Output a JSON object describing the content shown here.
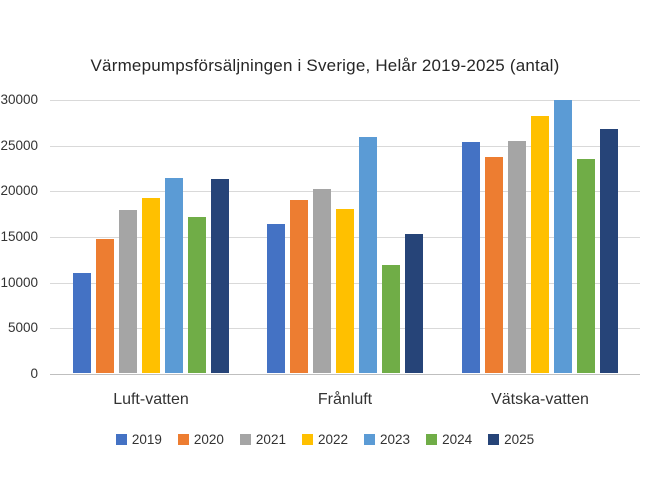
{
  "chart_data": {
    "type": "bar",
    "title": "Värmepumpsförsäljningen i Sverige, Helår 2019-2025 (antal)",
    "xlabel": "",
    "ylabel": "",
    "categories": [
      "Luft-vatten",
      "Frånluft",
      "Vätska-vatten"
    ],
    "series": [
      {
        "name": "2019",
        "color": "#4472C4",
        "values": [
          11000,
          16300,
          25300
        ]
      },
      {
        "name": "2020",
        "color": "#ED7D31",
        "values": [
          14700,
          18900,
          23700
        ]
      },
      {
        "name": "2021",
        "color": "#A5A5A5",
        "values": [
          17800,
          20100,
          25400
        ]
      },
      {
        "name": "2022",
        "color": "#FFC000",
        "values": [
          19200,
          18000,
          28100
        ]
      },
      {
        "name": "2023",
        "color": "#5B9BD5",
        "values": [
          21300,
          25800,
          29900
        ]
      },
      {
        "name": "2024",
        "color": "#70AD47",
        "values": [
          17100,
          11800,
          23400
        ]
      },
      {
        "name": "2025",
        "color": "#264478",
        "values": [
          21200,
          15200,
          26700
        ]
      }
    ],
    "y_ticks": [
      0,
      5000,
      10000,
      15000,
      20000,
      25000,
      30000
    ],
    "ylim": [
      0,
      30000
    ],
    "grid": true,
    "grid_color": "#D9D9D9",
    "axis_line_color": "#BFBFBF",
    "legend_position": "bottom",
    "background_color": "#FFFFFF"
  }
}
